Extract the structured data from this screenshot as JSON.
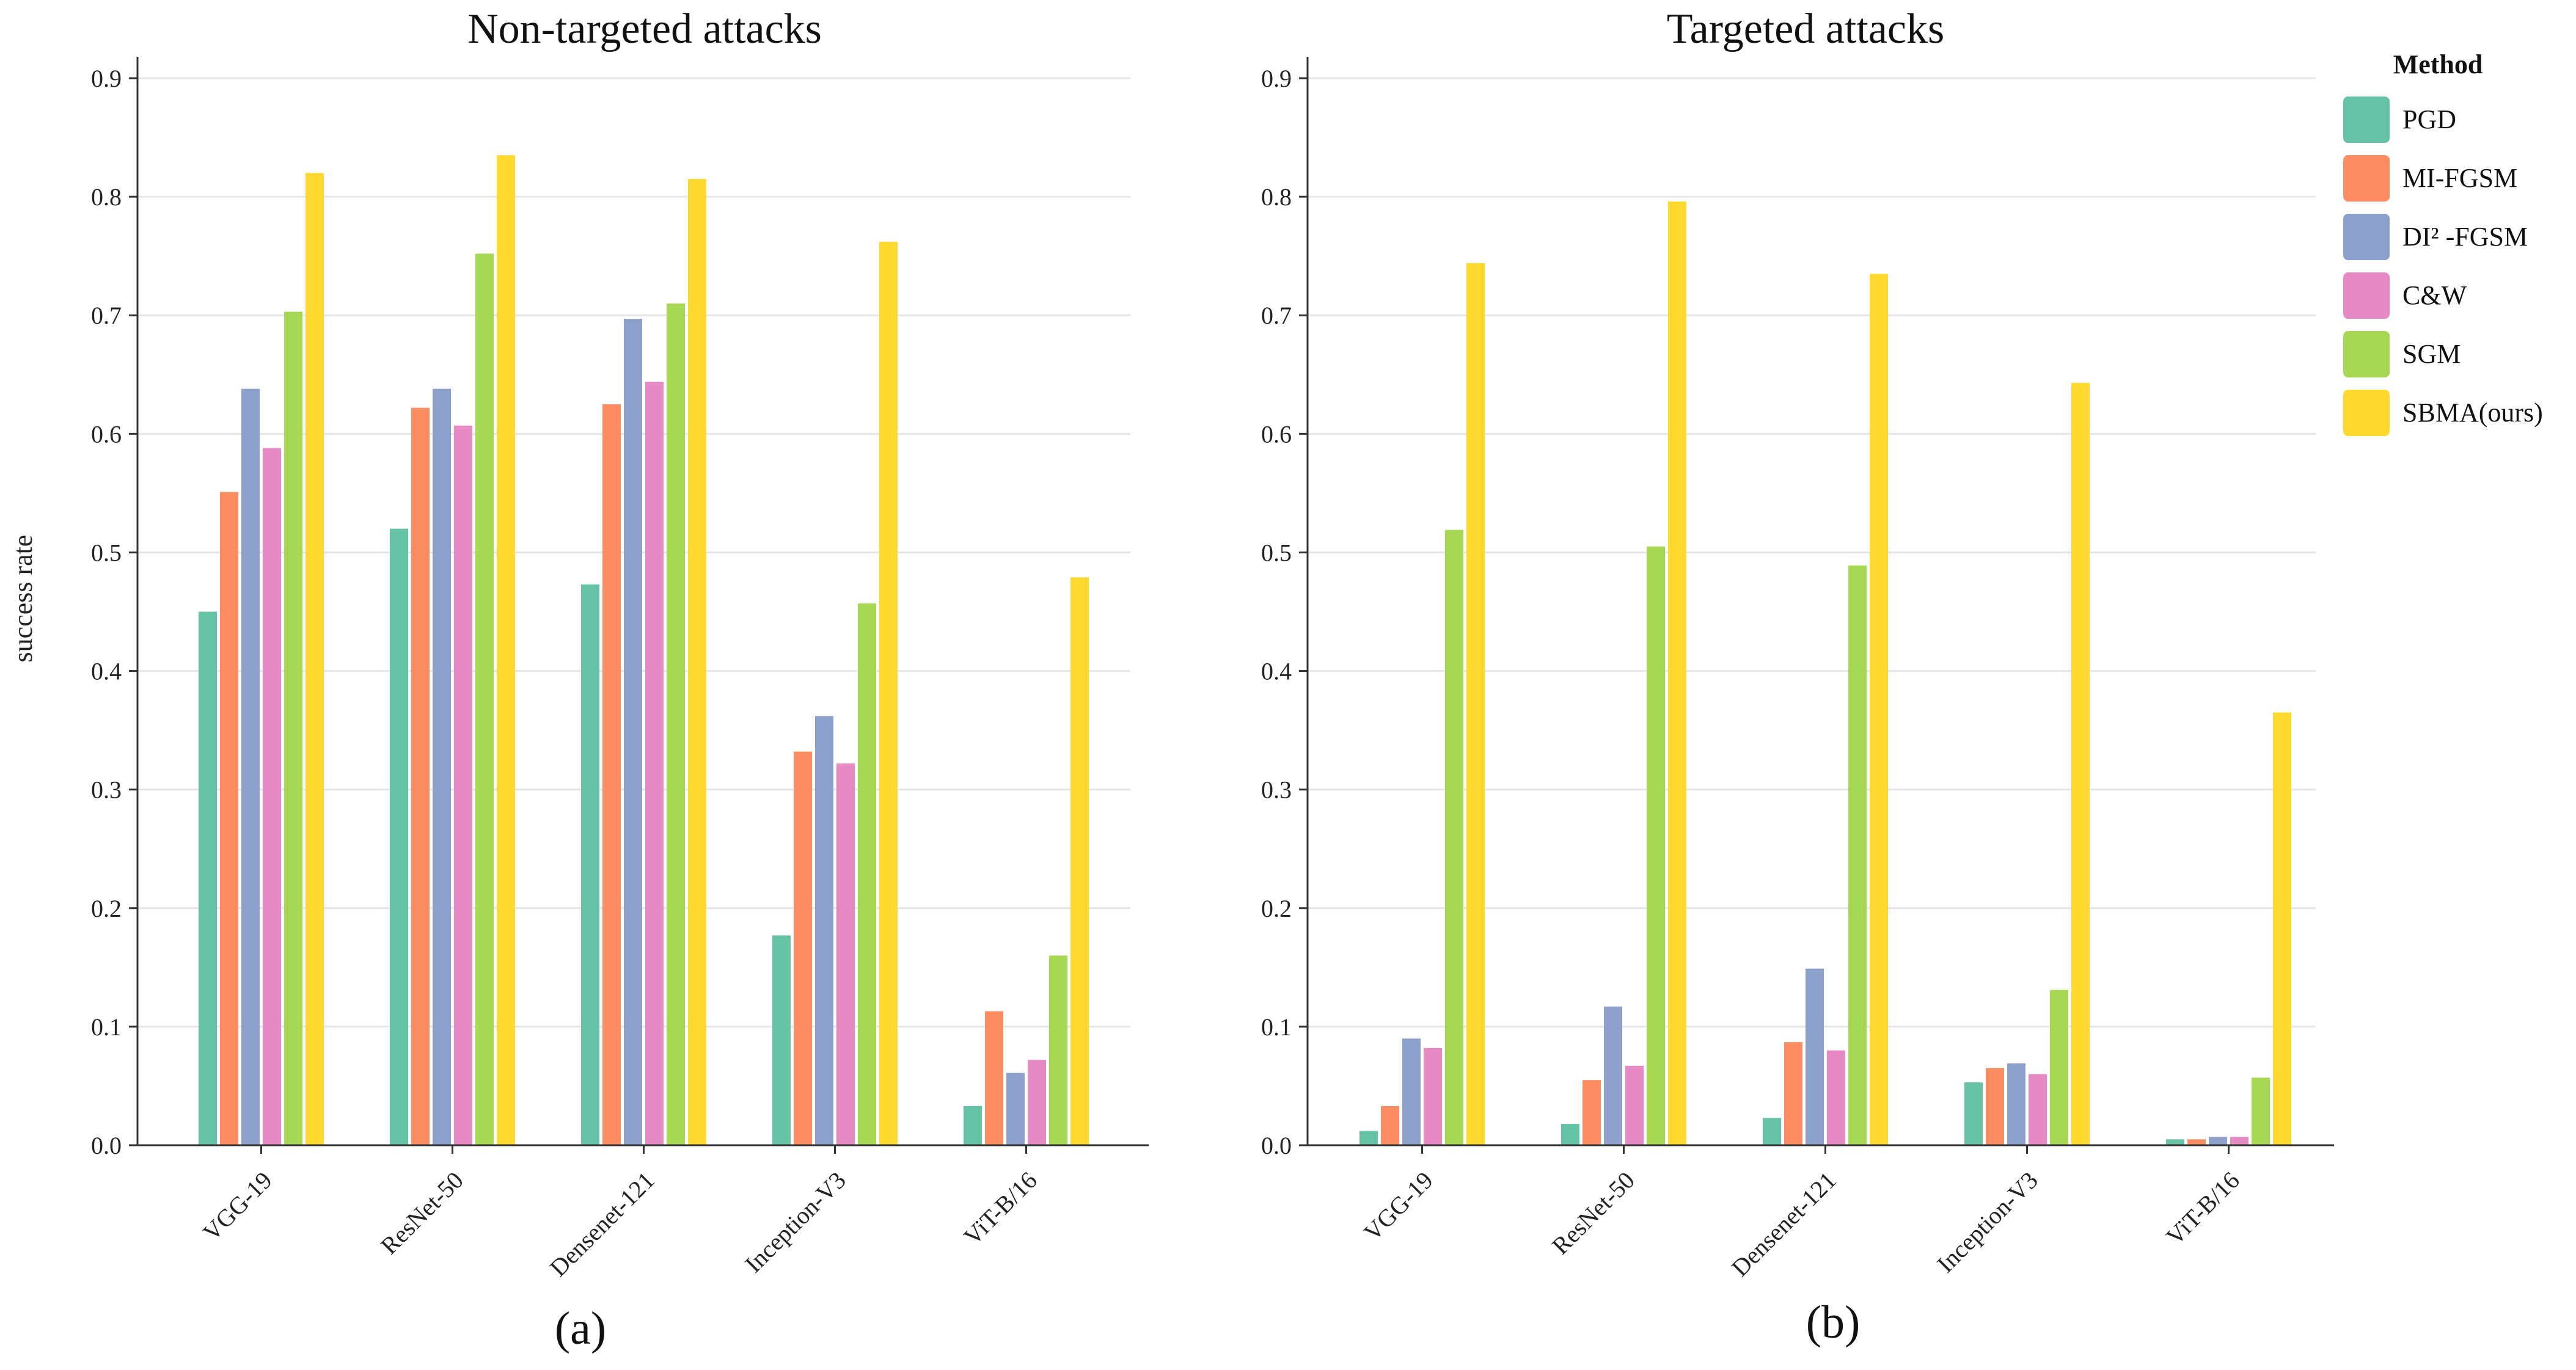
{
  "shared_ylabel": "success  rate",
  "legend": {
    "title": "Method",
    "entries": [
      "PGD",
      "MI-FGSM",
      "DI² -FGSM",
      "C&W",
      "SGM",
      "SBMA(ours)"
    ]
  },
  "colors": {
    "PGD": "#66c2a5",
    "MI-FGSM": "#fc8d62",
    "DI² -FGSM": "#8da0cb",
    "C&W": "#e78ac3",
    "SGM": "#a6d854",
    "SBMA(ours)": "#ffd92f"
  },
  "chart_data": [
    {
      "type": "bar",
      "title": "Non-targeted attacks",
      "sublabel": "(a)",
      "xlabel": "",
      "ylabel": "success  rate",
      "ylim": [
        0,
        0.9
      ],
      "yticks": [
        "0.0",
        "0.1",
        "0.2",
        "0.3",
        "0.4",
        "0.5",
        "0.6",
        "0.7",
        "0.8",
        "0.9"
      ],
      "categories": [
        "VGG-19",
        "ResNet-50",
        "Densenet-121",
        "Inception-V3",
        "ViT-B/16"
      ],
      "series": [
        {
          "name": "PGD",
          "values": [
            0.45,
            0.52,
            0.473,
            0.177,
            0.033
          ]
        },
        {
          "name": "MI-FGSM",
          "values": [
            0.551,
            0.622,
            0.625,
            0.332,
            0.113
          ]
        },
        {
          "name": "DI² -FGSM",
          "values": [
            0.638,
            0.638,
            0.697,
            0.362,
            0.061
          ]
        },
        {
          "name": "C&W",
          "values": [
            0.588,
            0.607,
            0.644,
            0.322,
            0.072
          ]
        },
        {
          "name": "SGM",
          "values": [
            0.703,
            0.752,
            0.71,
            0.457,
            0.16
          ]
        },
        {
          "name": "SBMA(ours)",
          "values": [
            0.82,
            0.835,
            0.815,
            0.762,
            0.479
          ]
        }
      ]
    },
    {
      "type": "bar",
      "title": "Targeted attacks",
      "sublabel": "(b)",
      "xlabel": "",
      "ylabel": "",
      "ylim": [
        0,
        0.9
      ],
      "yticks": [
        "0.0",
        "0.1",
        "0.2",
        "0.3",
        "0.4",
        "0.5",
        "0.6",
        "0.7",
        "0.8",
        "0.9"
      ],
      "categories": [
        "VGG-19",
        "ResNet-50",
        "Densenet-121",
        "Inception-V3",
        "ViT-B/16"
      ],
      "series": [
        {
          "name": "PGD",
          "values": [
            0.012,
            0.018,
            0.023,
            0.053,
            0.005
          ]
        },
        {
          "name": "MI-FGSM",
          "values": [
            0.033,
            0.055,
            0.087,
            0.065,
            0.005
          ]
        },
        {
          "name": "DI² -FGSM",
          "values": [
            0.09,
            0.117,
            0.149,
            0.069,
            0.007
          ]
        },
        {
          "name": "C&W",
          "values": [
            0.082,
            0.067,
            0.08,
            0.06,
            0.007
          ]
        },
        {
          "name": "SGM",
          "values": [
            0.519,
            0.505,
            0.489,
            0.131,
            0.057
          ]
        },
        {
          "name": "SBMA(ours)",
          "values": [
            0.744,
            0.796,
            0.735,
            0.643,
            0.365
          ]
        }
      ]
    }
  ]
}
